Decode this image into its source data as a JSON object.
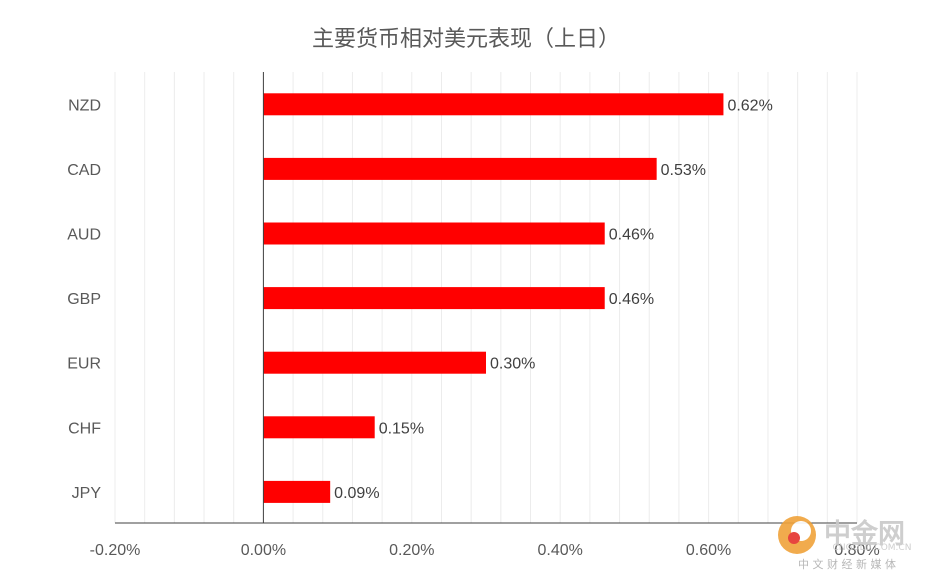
{
  "chart_data": {
    "type": "bar",
    "orientation": "horizontal",
    "title": "主要货币相对美元表现（上日）",
    "categories": [
      "NZD",
      "CAD",
      "AUD",
      "GBP",
      "EUR",
      "CHF",
      "JPY"
    ],
    "values": [
      0.62,
      0.53,
      0.46,
      0.46,
      0.3,
      0.15,
      0.09
    ],
    "value_labels": [
      "0.62%",
      "0.53%",
      "0.46%",
      "0.46%",
      "0.30%",
      "0.15%",
      "0.09%"
    ],
    "xlim": [
      -0.2,
      0.8
    ],
    "xticks": [
      -0.2,
      0,
      0.2,
      0.4,
      0.6,
      0.8
    ],
    "xtick_labels": [
      "-0.20%",
      "0.00%",
      "0.20%",
      "0.40%",
      "0.60%",
      "0.80%"
    ],
    "xlabel": "",
    "ylabel": "",
    "grid": "vertical",
    "bar_color": "#ff0000"
  },
  "watermark": {
    "name": "中金网",
    "domain": "CNGOLD.COM.CN",
    "tagline": "中 文 财 经 新 媒 体"
  }
}
